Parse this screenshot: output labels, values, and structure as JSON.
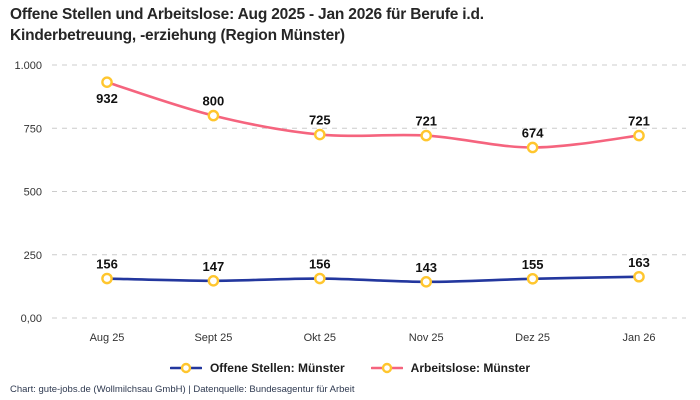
{
  "title_line1": "Offene Stellen und Arbeitslose: Aug 2025 - Jan 2026 für Berufe i.d.",
  "title_line2": "Kinderbetreuung, -erziehung (Region Münster)",
  "footer": {
    "text": "Chart: gute-jobs.de (Wollmilchsau GmbH) | Datenquelle: Bundesagentur für Arbeit"
  },
  "colors": {
    "grid": "#cccccc",
    "marker_ring": "#ffc62e",
    "open_positions_line": "#23379e",
    "unemployed_line": "#f5647e",
    "data_label": "#111111",
    "axis_text": "#333333"
  },
  "chart_data": {
    "type": "line",
    "title": "Offene Stellen und Arbeitslose: Aug 2025 - Jan 2026 für Berufe i.d. Kinderbetreuung, -erziehung (Region Münster)",
    "categories": [
      "Aug 25",
      "Sept 25",
      "Okt 25",
      "Nov 25",
      "Dez 25",
      "Jan 26"
    ],
    "series": [
      {
        "name": "Offene Stellen: Münster",
        "values": [
          156,
          147,
          156,
          143,
          155,
          163
        ],
        "color": "#23379e",
        "label_below": []
      },
      {
        "name": "Arbeitslose: Münster",
        "values": [
          932,
          800,
          725,
          721,
          674,
          721
        ],
        "color": "#f5647e",
        "label_below": [
          0
        ]
      }
    ],
    "ylim": [
      0,
      1000
    ],
    "yticks": [
      {
        "value": 0,
        "label": "0,00"
      },
      {
        "value": 250,
        "label": "250"
      },
      {
        "value": 500,
        "label": "500"
      },
      {
        "value": 750,
        "label": "750"
      },
      {
        "value": 1000,
        "label": "1.000"
      }
    ],
    "grid": "horizontal-dashed",
    "legend_position": "bottom",
    "marker": "circle-open"
  }
}
